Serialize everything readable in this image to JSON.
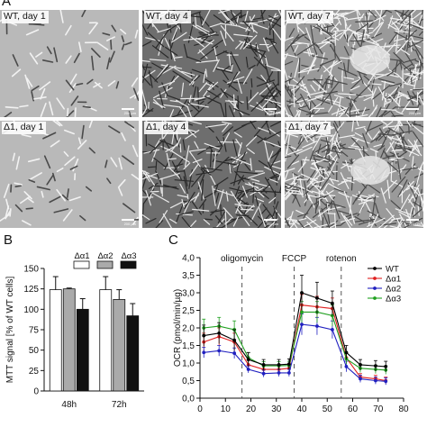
{
  "panel_a": {
    "letter": "A",
    "images": [
      {
        "label": "WT, day 1",
        "density": "sparse",
        "scale": "200 µm"
      },
      {
        "label": "WT, day 4",
        "density": "medium",
        "scale": "200 µm"
      },
      {
        "label": "WT, day 7",
        "density": "dense",
        "scale": "200 µm"
      },
      {
        "label": "Δ1, day 1",
        "density": "sparse",
        "scale": "200 µm"
      },
      {
        "label": "Δ1, day 4",
        "density": "medium",
        "scale": "200 µm"
      },
      {
        "label": "Δ1, day 7",
        "density": "dense",
        "scale": "200 µm"
      }
    ]
  },
  "panel_b": {
    "letter": "B"
  },
  "panel_c": {
    "letter": "C"
  },
  "chart_data": [
    {
      "type": "bar",
      "ylabel": "MTT signal [% of WT cells]",
      "ylim": [
        0,
        150
      ],
      "yticks": [
        0,
        25,
        50,
        75,
        100,
        125,
        150
      ],
      "categories": [
        "48h",
        "72h"
      ],
      "series": [
        {
          "name": "Δα1",
          "color": "#ffffff",
          "values": [
            124,
            124
          ],
          "errors": [
            16,
            16
          ]
        },
        {
          "name": "Δα2",
          "color": "#aaaaaa",
          "values": [
            125,
            112
          ],
          "errors": [
            1,
            12
          ]
        },
        {
          "name": "Δα3",
          "color": "#111111",
          "values": [
            100,
            92
          ],
          "errors": [
            13,
            15
          ]
        }
      ],
      "legend_position": "top"
    },
    {
      "type": "line",
      "ylabel": "OCR (pmol/min/µg)",
      "ylim": [
        0,
        4.0
      ],
      "yticks": [
        "0,0",
        "0,5",
        "1,0",
        "1,5",
        "2,0",
        "2,5",
        "3,0",
        "3,5",
        "4,0"
      ],
      "xlim": [
        0,
        80
      ],
      "xticks": [
        0,
        10,
        20,
        30,
        40,
        50,
        60,
        70,
        80
      ],
      "annotations": [
        {
          "text": "oligomycin",
          "x": 16.5
        },
        {
          "text": "FCCP",
          "x": 37
        },
        {
          "text": "rotenon",
          "x": 55.5
        }
      ],
      "x": [
        1.5,
        7.5,
        13.5,
        19,
        25,
        31,
        35,
        40,
        46,
        52,
        57.5,
        63,
        69,
        73
      ],
      "series": [
        {
          "name": "WT",
          "color": "#000000",
          "values": [
            1.78,
            1.85,
            1.65,
            1.1,
            0.95,
            0.95,
            0.97,
            3.0,
            2.85,
            2.7,
            1.3,
            0.95,
            0.92,
            0.9
          ],
          "errors": [
            0.3,
            0.3,
            0.3,
            0.2,
            0.15,
            0.15,
            0.15,
            0.5,
            0.45,
            0.35,
            0.2,
            0.15,
            0.15,
            0.15
          ]
        },
        {
          "name": "Δα1",
          "color": "#e02020",
          "values": [
            1.6,
            1.75,
            1.6,
            0.95,
            0.82,
            0.82,
            0.85,
            2.65,
            2.6,
            2.55,
            1.15,
            0.6,
            0.55,
            0.5
          ],
          "errors": [
            0.25,
            0.25,
            0.25,
            0.15,
            0.12,
            0.12,
            0.12,
            0.3,
            0.3,
            0.3,
            0.15,
            0.1,
            0.1,
            0.1
          ]
        },
        {
          "name": "Δα2",
          "color": "#2020c0",
          "values": [
            1.3,
            1.35,
            1.28,
            0.82,
            0.7,
            0.72,
            0.72,
            2.1,
            2.05,
            1.95,
            0.9,
            0.55,
            0.5,
            0.48
          ],
          "errors": [
            0.15,
            0.15,
            0.15,
            0.1,
            0.1,
            0.1,
            0.1,
            0.3,
            0.25,
            0.25,
            0.15,
            0.1,
            0.1,
            0.1
          ]
        },
        {
          "name": "Δα3",
          "color": "#20a020",
          "values": [
            2.0,
            2.05,
            1.95,
            1.15,
            0.92,
            0.92,
            0.93,
            2.45,
            2.45,
            2.35,
            1.12,
            0.85,
            0.82,
            0.8
          ],
          "errors": [
            0.25,
            0.25,
            0.25,
            0.15,
            0.12,
            0.12,
            0.12,
            0.3,
            0.3,
            0.3,
            0.15,
            0.12,
            0.12,
            0.12
          ]
        }
      ],
      "legend_position": "top-right"
    }
  ]
}
